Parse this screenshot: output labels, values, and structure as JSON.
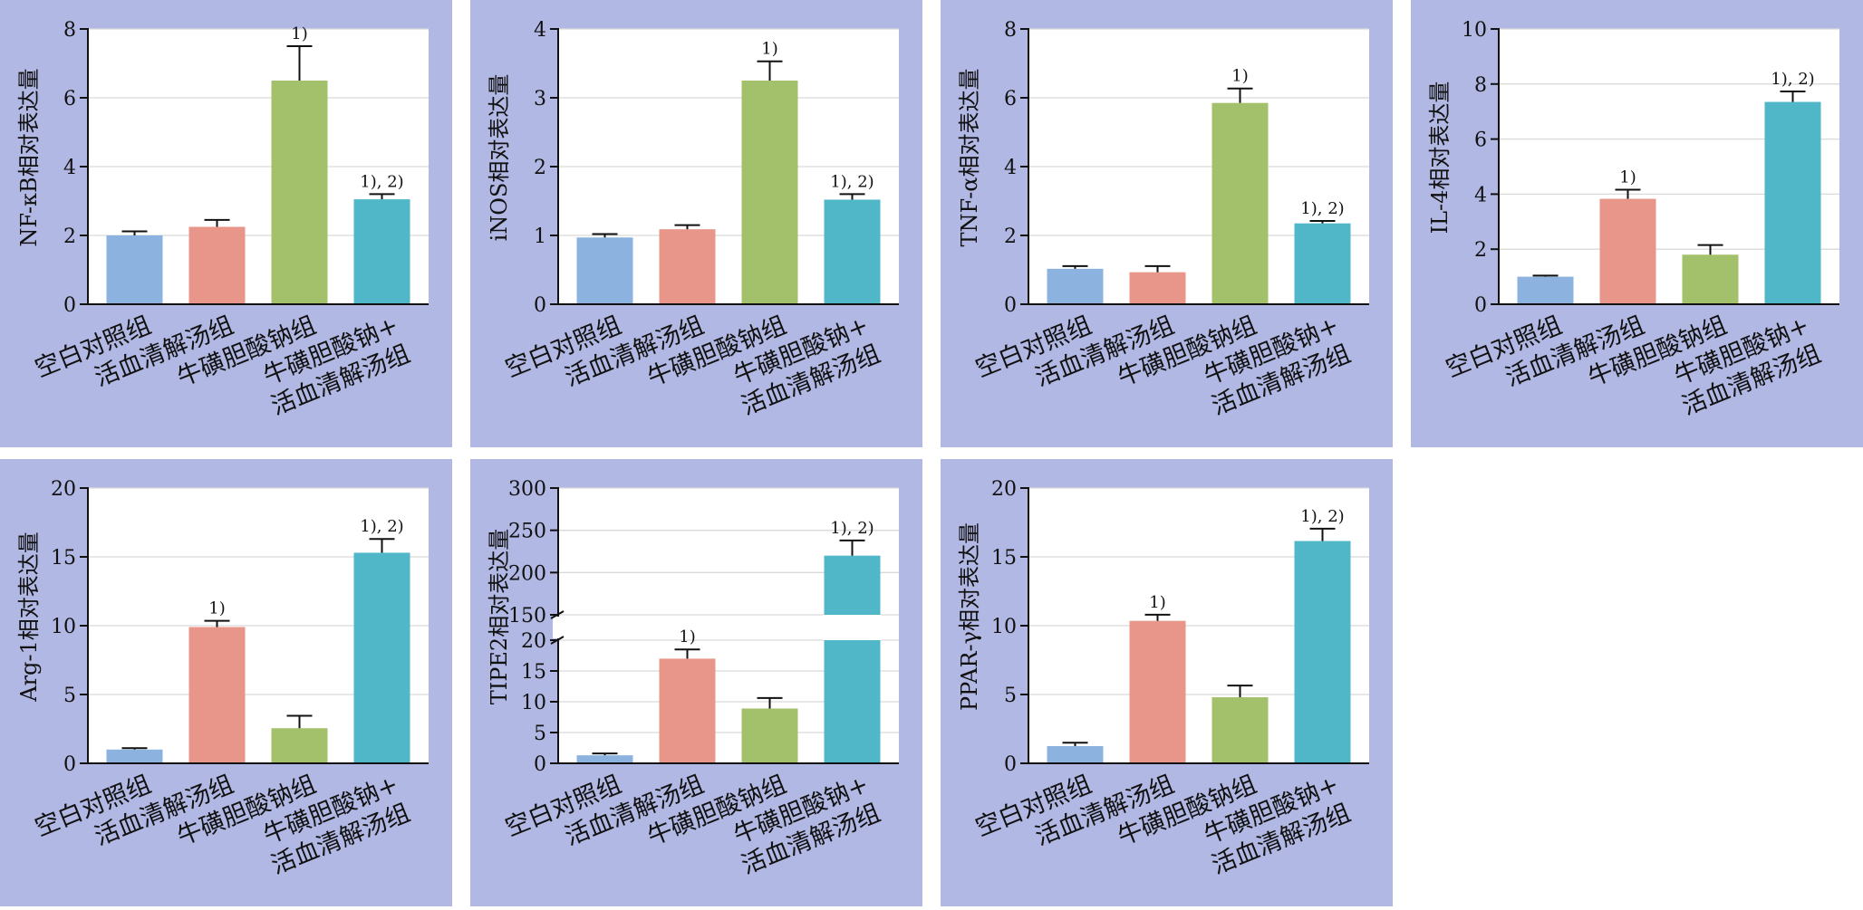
{
  "colors": {
    "panel_bg": "#b1b8e3",
    "plot_bg": "#ffffff",
    "grid": "#d9d9d9",
    "bars": [
      "#8cb3e0",
      "#e8968a",
      "#a3c06a",
      "#4fb7c8"
    ]
  },
  "chart_data": [
    {
      "type": "bar",
      "ylabel": "NF-κB相对表达量",
      "ylim": [
        0,
        8
      ],
      "yticks": [
        0,
        2,
        4,
        6,
        8
      ],
      "categories": [
        "空白对照组",
        "活血清解汤组",
        "牛磺胆酸钠组",
        "牛磺胆酸钠+活血清解汤组"
      ],
      "category_lines": [
        [
          "空白对照组"
        ],
        [
          "活血清解汤组"
        ],
        [
          "牛磺胆酸钠组"
        ],
        [
          "牛磺胆酸钠+",
          "活血清解汤组"
        ]
      ],
      "values": [
        2.0,
        2.25,
        6.5,
        3.05
      ],
      "errors": [
        0.12,
        0.2,
        1.0,
        0.15
      ],
      "annotations": [
        "",
        "",
        "1)",
        "1), 2)"
      ],
      "grid": true
    },
    {
      "type": "bar",
      "ylabel": "iNOS相对表达量",
      "ylim": [
        0,
        4
      ],
      "yticks": [
        0,
        1,
        2,
        3,
        4
      ],
      "categories": [
        "空白对照组",
        "活血清解汤组",
        "牛磺胆酸钠组",
        "牛磺胆酸钠+活血清解汤组"
      ],
      "category_lines": [
        [
          "空白对照组"
        ],
        [
          "活血清解汤组"
        ],
        [
          "牛磺胆酸钠组"
        ],
        [
          "牛磺胆酸钠+",
          "活血清解汤组"
        ]
      ],
      "values": [
        0.97,
        1.09,
        3.25,
        1.52
      ],
      "errors": [
        0.05,
        0.06,
        0.28,
        0.08
      ],
      "annotations": [
        "",
        "",
        "1)",
        "1), 2)"
      ],
      "grid": true
    },
    {
      "type": "bar",
      "ylabel": "TNF-α相对表达量",
      "ylim": [
        0,
        8
      ],
      "yticks": [
        0,
        2,
        4,
        6,
        8
      ],
      "categories": [
        "空白对照组",
        "活血清解汤组",
        "牛磺胆酸钠组",
        "牛磺胆酸钠+活血清解汤组"
      ],
      "category_lines": [
        [
          "空白对照组"
        ],
        [
          "活血清解汤组"
        ],
        [
          "牛磺胆酸钠组"
        ],
        [
          "牛磺胆酸钠+",
          "活血清解汤组"
        ]
      ],
      "values": [
        1.03,
        0.93,
        5.85,
        2.35
      ],
      "errors": [
        0.08,
        0.18,
        0.42,
        0.07
      ],
      "annotations": [
        "",
        "",
        "1)",
        "1), 2)"
      ],
      "grid": true
    },
    {
      "type": "bar",
      "ylabel": "IL-4相对表达量",
      "ylim": [
        0,
        10
      ],
      "yticks": [
        0,
        2,
        4,
        6,
        8,
        10
      ],
      "categories": [
        "空白对照组",
        "活血清解汤组",
        "牛磺胆酸钠组",
        "牛磺胆酸钠+活血清解汤组"
      ],
      "category_lines": [
        [
          "空白对照组"
        ],
        [
          "活血清解汤组"
        ],
        [
          "牛磺胆酸钠组"
        ],
        [
          "牛磺胆酸钠+",
          "活血清解汤组"
        ]
      ],
      "values": [
        1.0,
        3.83,
        1.8,
        7.35
      ],
      "errors": [
        0.04,
        0.33,
        0.35,
        0.38
      ],
      "annotations": [
        "",
        "1)",
        "",
        "1), 2)"
      ],
      "grid": true
    },
    {
      "type": "bar",
      "ylabel": "Arg-1相对表达量",
      "ylim": [
        0,
        20
      ],
      "yticks": [
        0,
        5,
        10,
        15,
        20
      ],
      "categories": [
        "空白对照组",
        "活血清解汤组",
        "牛磺胆酸钠组",
        "牛磺胆酸钠+活血清解汤组"
      ],
      "category_lines": [
        [
          "空白对照组"
        ],
        [
          "活血清解汤组"
        ],
        [
          "牛磺胆酸钠组"
        ],
        [
          "牛磺胆酸钠+",
          "活血清解汤组"
        ]
      ],
      "values": [
        1.0,
        9.9,
        2.55,
        15.3
      ],
      "errors": [
        0.1,
        0.45,
        0.9,
        1.0
      ],
      "annotations": [
        "",
        "1)",
        "",
        "1), 2)"
      ],
      "grid": true
    },
    {
      "type": "bar",
      "ylabel": "TIPE2相对表达量",
      "broken_axis": true,
      "ylim": [
        0,
        300
      ],
      "segments": [
        [
          0,
          20
        ],
        [
          150,
          300
        ]
      ],
      "yticks": [
        0,
        5,
        10,
        15,
        20,
        150,
        200,
        250,
        300
      ],
      "categories": [
        "空白对照组",
        "活血清解汤组",
        "牛磺胆酸钠组",
        "牛磺胆酸钠+活血清解汤组"
      ],
      "category_lines": [
        [
          "空白对照组"
        ],
        [
          "活血清解汤组"
        ],
        [
          "牛磺胆酸钠组"
        ],
        [
          "牛磺胆酸钠+",
          "活血清解汤组"
        ]
      ],
      "values": [
        1.3,
        17.0,
        8.9,
        220
      ],
      "errors": [
        0.3,
        1.5,
        1.7,
        18
      ],
      "annotations": [
        "",
        "1)",
        "",
        "1), 2)"
      ],
      "grid": true
    },
    {
      "type": "bar",
      "ylabel": "PPAR-γ相对表达量",
      "ylim": [
        0,
        20
      ],
      "yticks": [
        0,
        5,
        10,
        15,
        20
      ],
      "categories": [
        "空白对照组",
        "活血清解汤组",
        "牛磺胆酸钠组",
        "牛磺胆酸钠+活血清解汤组"
      ],
      "category_lines": [
        [
          "空白对照组"
        ],
        [
          "活血清解汤组"
        ],
        [
          "牛磺胆酸钠组"
        ],
        [
          "牛磺胆酸钠+",
          "活血清解汤组"
        ]
      ],
      "values": [
        1.25,
        10.35,
        4.8,
        16.15
      ],
      "errors": [
        0.25,
        0.45,
        0.85,
        0.9
      ],
      "annotations": [
        "",
        "1)",
        "",
        "1), 2)"
      ],
      "grid": true
    }
  ]
}
